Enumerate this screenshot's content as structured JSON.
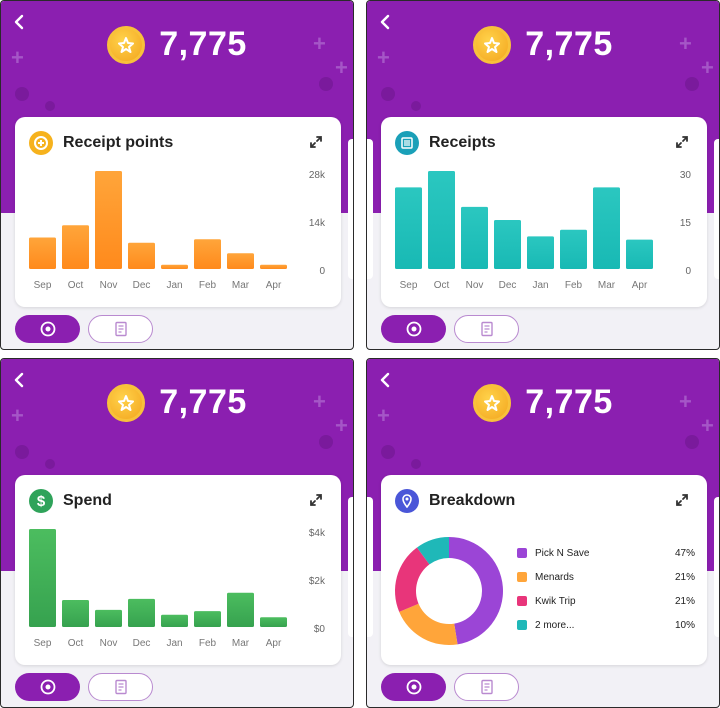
{
  "points_value": "7,775",
  "panels": [
    {
      "title": "Receipt points",
      "icon": "points-icon",
      "icon_color": "#f6b21d",
      "chart_data": {
        "type": "bar",
        "categories": [
          "Sep",
          "Oct",
          "Nov",
          "Dec",
          "Jan",
          "Feb",
          "Mar",
          "Apr"
        ],
        "values": [
          9,
          12.5,
          28,
          7.5,
          1.2,
          8.5,
          4.5,
          1.2
        ],
        "yticks": [
          "28k",
          "14k",
          "0"
        ],
        "ylim": [
          0,
          28
        ],
        "color_top": "#ffa53a",
        "color_bottom": "#ff8a1c"
      }
    },
    {
      "title": "Receipts",
      "icon": "receipts-icon",
      "icon_color": "#1aa0b8",
      "chart_data": {
        "type": "bar",
        "categories": [
          "Sep",
          "Oct",
          "Nov",
          "Dec",
          "Jan",
          "Feb",
          "Mar",
          "Apr"
        ],
        "values": [
          25,
          30,
          19,
          15,
          10,
          12,
          25,
          9
        ],
        "yticks": [
          "30",
          "15",
          "0"
        ],
        "ylim": [
          0,
          30
        ],
        "color_top": "#2bc7c0",
        "color_bottom": "#18b9b4"
      }
    },
    {
      "title": "Spend",
      "icon": "dollar-icon",
      "icon_color": "#2fa35a",
      "chart_data": {
        "type": "bar",
        "categories": [
          "Sep",
          "Oct",
          "Nov",
          "Dec",
          "Jan",
          "Feb",
          "Mar",
          "Apr"
        ],
        "values": [
          4.0,
          1.1,
          0.7,
          1.15,
          0.5,
          0.65,
          1.4,
          0.4
        ],
        "yticks": [
          "$4k",
          "$2k",
          "$0"
        ],
        "ylim": [
          0,
          4
        ],
        "color_top": "#4cbd5f",
        "color_bottom": "#36a24f"
      }
    },
    {
      "title": "Breakdown",
      "icon": "location-pin-icon",
      "icon_color": "#4a56d8",
      "chart_data": {
        "type": "pie",
        "labels": [
          "Pick N Save",
          "Menards",
          "Kwik Trip",
          "2 more..."
        ],
        "values": [
          47,
          21,
          21,
          10
        ],
        "percent_labels": [
          "47%",
          "21%",
          "21%",
          "10%"
        ],
        "colors": [
          "#9b45d6",
          "#ffa53a",
          "#e8357a",
          "#1fb8b8"
        ]
      }
    }
  ]
}
